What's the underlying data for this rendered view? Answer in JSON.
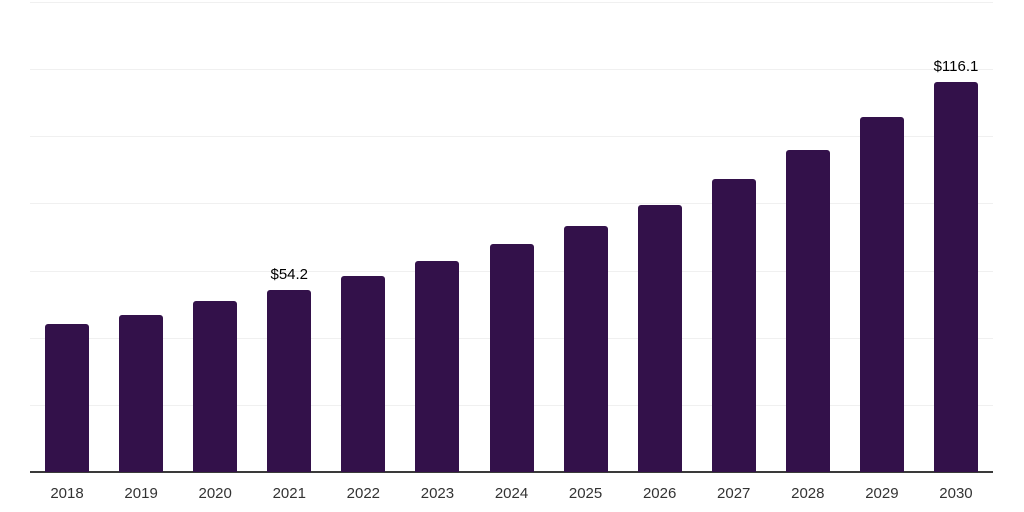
{
  "chart_data": {
    "type": "bar",
    "title": "",
    "xlabel": "",
    "ylabel": "",
    "categories": [
      "2018",
      "2019",
      "2020",
      "2021",
      "2022",
      "2023",
      "2024",
      "2025",
      "2026",
      "2027",
      "2028",
      "2029",
      "2030"
    ],
    "values": [
      44.0,
      46.7,
      51.0,
      54.2,
      58.4,
      63.0,
      67.9,
      73.4,
      79.5,
      87.2,
      95.9,
      105.6,
      116.1
    ],
    "data_labels": [
      "",
      "",
      "",
      "$54.2",
      "",
      "",
      "",
      "",
      "",
      "",
      "",
      "",
      "$116.1"
    ],
    "ylim": [
      0,
      140
    ],
    "grid_step": 20,
    "grid": true,
    "legend": false,
    "colors": {
      "bar": "#33114a",
      "gridline": "#f0f0f0",
      "axis_line": "#3a3a3a",
      "data_label": "#000000",
      "tick_label": "#333333",
      "background": "#ffffff"
    }
  }
}
